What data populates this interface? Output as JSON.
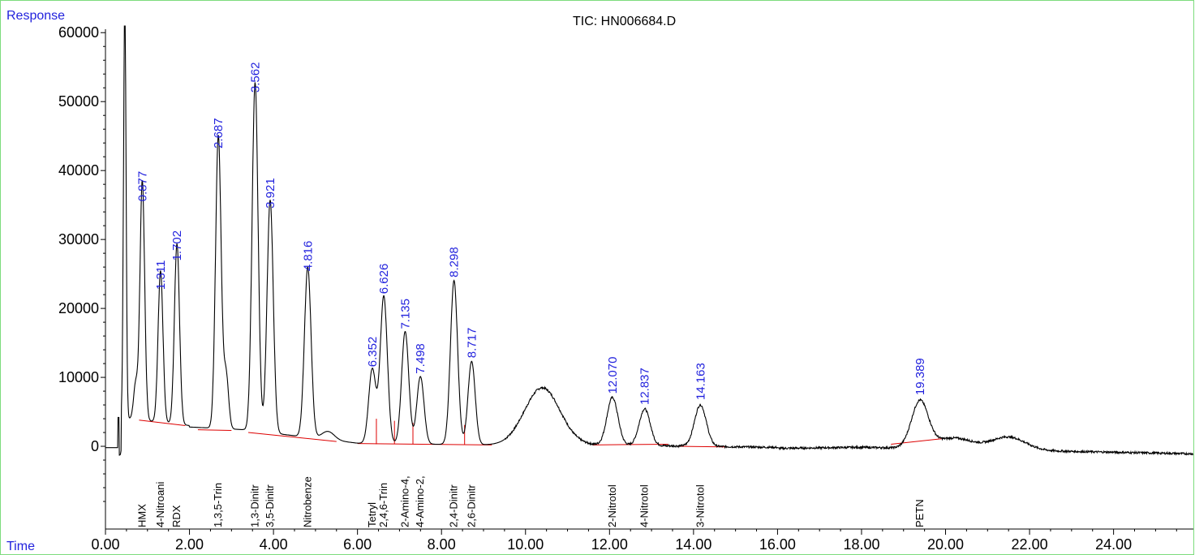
{
  "chart_data": {
    "type": "line",
    "title": "TIC: HN006684.D",
    "ylabel": "Response",
    "xlabel": "Time",
    "xlim": [
      0,
      25.9
    ],
    "ylim": [
      -12000,
      60500
    ],
    "x_ticks": [
      "0.00",
      "2.00",
      "4.00",
      "6.00",
      "8.00",
      "10.00",
      "12.00",
      "14.00",
      "16.00",
      "18.00",
      "20.00",
      "22.00",
      "24.00"
    ],
    "y_ticks": [
      "0",
      "10000",
      "20000",
      "30000",
      "40000",
      "50000",
      "60000"
    ],
    "colors": {
      "trace": "#000000",
      "baseline": "#dd0000",
      "rt_label": "#2222dd",
      "frame": "#7ddc7d"
    },
    "peaks": [
      {
        "rt": 0.877,
        "rt_label": "0.877",
        "height": 34800,
        "compound": "HMX"
      },
      {
        "rt": 1.311,
        "rt_label": "1.311",
        "height": 22000,
        "compound": "4-Nitroani"
      },
      {
        "rt": 1.702,
        "rt_label": "1.702",
        "height": 26200,
        "compound": "RDX"
      },
      {
        "rt": 2.687,
        "rt_label": "2.687",
        "height": 42500,
        "compound": "1,3,5-Trin"
      },
      {
        "rt": 3.562,
        "rt_label": "3.562",
        "height": 50600,
        "compound": "1,3-Dinitr"
      },
      {
        "rt": 3.921,
        "rt_label": "3.921",
        "height": 33800,
        "compound": "3,5-Dinitr"
      },
      {
        "rt": 4.816,
        "rt_label": "4.816",
        "height": 24700,
        "compound": "Nitrobenze"
      },
      {
        "rt": 6.352,
        "rt_label": "6.352",
        "height": 10800,
        "compound": "Tetryl"
      },
      {
        "rt": 6.626,
        "rt_label": "6.626",
        "height": 21400,
        "compound": "2,4,6-Trin"
      },
      {
        "rt": 7.135,
        "rt_label": "7.135",
        "height": 16300,
        "compound": "2-Amino-4,"
      },
      {
        "rt": 7.498,
        "rt_label": "7.498",
        "height": 9800,
        "compound": "4-Amino-2,"
      },
      {
        "rt": 8.298,
        "rt_label": "8.298",
        "height": 23800,
        "compound": "2,4-Dinitr"
      },
      {
        "rt": 8.717,
        "rt_label": "8.717",
        "height": 12100,
        "compound": "2,6-Dinitr"
      },
      {
        "rt": 12.07,
        "rt_label": "12.070",
        "height": 6900,
        "compound": "2-Nitrotol"
      },
      {
        "rt": 12.837,
        "rt_label": "12.837",
        "height": 5300,
        "compound": "4-Nitrotol"
      },
      {
        "rt": 14.163,
        "rt_label": "14.163",
        "height": 6000,
        "compound": "3-Nitrotol"
      },
      {
        "rt": 19.389,
        "rt_label": "19.389",
        "height": 6700,
        "compound": "PETN"
      }
    ],
    "unlabeled_features": [
      {
        "rt": 0.46,
        "height": 60500,
        "width": 0.03
      },
      {
        "rt": 0.72,
        "height": 5200,
        "width": 0.05
      },
      {
        "rt": 2.87,
        "height": 8000,
        "width": 0.06
      },
      {
        "rt": 5.3,
        "height": 1200,
        "width": 0.15
      },
      {
        "rt": 10.4,
        "height": 8300,
        "width": 0.42
      },
      {
        "rt": 20.2,
        "height": 1600,
        "width": 0.45
      },
      {
        "rt": 21.5,
        "height": 1900,
        "width": 0.4
      }
    ],
    "baseline_segments": [
      {
        "x": [
          0.8,
          1.9
        ],
        "y": [
          3800,
          3000
        ]
      },
      {
        "x": [
          2.2,
          3.0
        ],
        "y": [
          2400,
          2300
        ]
      },
      {
        "x": [
          3.4,
          5.5
        ],
        "y": [
          2000,
          700
        ]
      },
      {
        "x": [
          6.0,
          9.2
        ],
        "y": [
          400,
          200
        ]
      },
      {
        "x": [
          11.6,
          13.4
        ],
        "y": [
          200,
          300
        ]
      },
      {
        "x": [
          13.6,
          14.8
        ],
        "y": [
          0,
          -100
        ]
      },
      {
        "x": [
          18.7,
          19.9
        ],
        "y": [
          300,
          1100
        ]
      }
    ]
  }
}
